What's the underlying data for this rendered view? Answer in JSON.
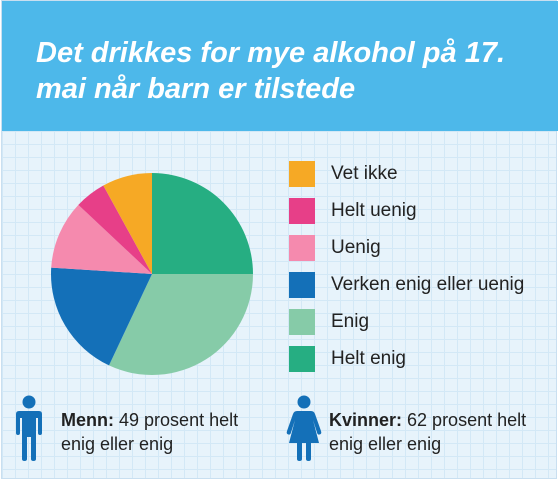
{
  "title": "Det drikkes for mye alkohol på 17. mai når barn er tilstede",
  "chart_data": {
    "type": "pie",
    "start": "12 o'clock",
    "direction": "clockwise",
    "slices": [
      {
        "label": "Helt enig",
        "value": 25,
        "color": "#26ae82"
      },
      {
        "label": "Enig",
        "value": 32,
        "color": "#86cba8"
      },
      {
        "label": "Verken enig eller uenig",
        "value": 19,
        "color": "#1470b8"
      },
      {
        "label": "Uenig",
        "value": 11,
        "color": "#f58aae"
      },
      {
        "label": "Helt uenig",
        "value": 5,
        "color": "#e73f88"
      },
      {
        "label": "Vet ikke",
        "value": 8,
        "color": "#f6a925"
      }
    ],
    "legend": [
      {
        "label": "Vet ikke",
        "color": "#f6a925"
      },
      {
        "label": "Helt uenig",
        "color": "#e73f88"
      },
      {
        "label": "Uenig",
        "color": "#f58aae"
      },
      {
        "label": "Verken enig eller uenig",
        "color": "#1470b8"
      },
      {
        "label": "Enig",
        "color": "#86cba8"
      },
      {
        "label": "Helt enig",
        "color": "#26ae82"
      }
    ],
    "legend_placement": "right"
  },
  "stats": {
    "men": {
      "label": "Menn:",
      "text": "49 prosent helt enig eller enig",
      "icon": "man-icon"
    },
    "women": {
      "label": "Kvinner:",
      "text": "62 prosent helt enig eller enig",
      "icon": "woman-icon"
    }
  },
  "colors": {
    "header": "#4db8ea",
    "icon": "#1470b8",
    "background": "#e7f3fb"
  }
}
